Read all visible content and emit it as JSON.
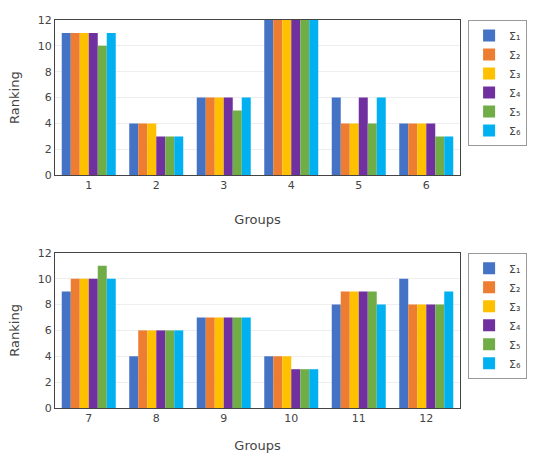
{
  "chart_data": [
    {
      "type": "bar",
      "xlabel": "Groups",
      "ylabel": "Ranking",
      "categories": [
        "1",
        "2",
        "3",
        "4",
        "5",
        "6"
      ],
      "series": [
        {
          "name": "Σ₁",
          "color": "#4472C4",
          "values": [
            11,
            4,
            6,
            12,
            6,
            4
          ]
        },
        {
          "name": "Σ₂",
          "color": "#ED7D31",
          "values": [
            11,
            4,
            6,
            12,
            4,
            4
          ]
        },
        {
          "name": "Σ₃",
          "color": "#FFC000",
          "values": [
            11,
            4,
            6,
            12,
            4,
            4
          ]
        },
        {
          "name": "Σ₄",
          "color": "#7030A0",
          "values": [
            11,
            3,
            6,
            12,
            6,
            4
          ]
        },
        {
          "name": "Σ₅",
          "color": "#70AD47",
          "values": [
            10,
            3,
            5,
            12,
            4,
            3
          ]
        },
        {
          "name": "Σ₆",
          "color": "#00B0F0",
          "values": [
            11,
            3,
            6,
            12,
            6,
            3
          ]
        }
      ],
      "ylim": [
        0,
        12
      ],
      "yticks": [
        0,
        2,
        4,
        6,
        8,
        10,
        12
      ],
      "grid": true,
      "legend": "right"
    },
    {
      "type": "bar",
      "xlabel": "Groups",
      "ylabel": "Ranking",
      "categories": [
        "7",
        "8",
        "9",
        "10",
        "11",
        "12"
      ],
      "series": [
        {
          "name": "Σ₁",
          "color": "#4472C4",
          "values": [
            9,
            4,
            7,
            4,
            8,
            10
          ]
        },
        {
          "name": "Σ₂",
          "color": "#ED7D31",
          "values": [
            10,
            6,
            7,
            4,
            9,
            8
          ]
        },
        {
          "name": "Σ₃",
          "color": "#FFC000",
          "values": [
            10,
            6,
            7,
            4,
            9,
            8
          ]
        },
        {
          "name": "Σ₄",
          "color": "#7030A0",
          "values": [
            10,
            6,
            7,
            3,
            9,
            8
          ]
        },
        {
          "name": "Σ₅",
          "color": "#70AD47",
          "values": [
            11,
            6,
            7,
            3,
            9,
            8
          ]
        },
        {
          "name": "Σ₆",
          "color": "#00B0F0",
          "values": [
            10,
            6,
            7,
            3,
            8,
            9
          ]
        }
      ],
      "ylim": [
        0,
        12
      ],
      "yticks": [
        0,
        2,
        4,
        6,
        8,
        10,
        12
      ],
      "grid": true,
      "legend": "right"
    }
  ]
}
